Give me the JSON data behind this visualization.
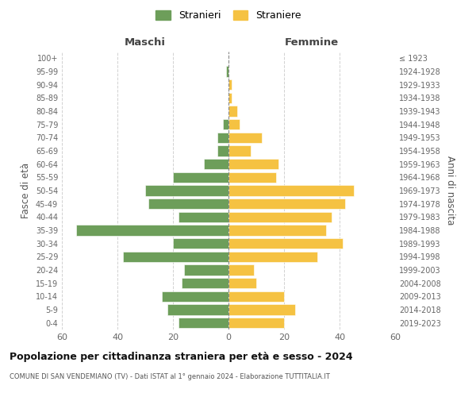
{
  "age_groups": [
    "0-4",
    "5-9",
    "10-14",
    "15-19",
    "20-24",
    "25-29",
    "30-34",
    "35-39",
    "40-44",
    "45-49",
    "50-54",
    "55-59",
    "60-64",
    "65-69",
    "70-74",
    "75-79",
    "80-84",
    "85-89",
    "90-94",
    "95-99",
    "100+"
  ],
  "birth_years": [
    "2019-2023",
    "2014-2018",
    "2009-2013",
    "2004-2008",
    "1999-2003",
    "1994-1998",
    "1989-1993",
    "1984-1988",
    "1979-1983",
    "1974-1978",
    "1969-1973",
    "1964-1968",
    "1959-1963",
    "1954-1958",
    "1949-1953",
    "1944-1948",
    "1939-1943",
    "1934-1938",
    "1929-1933",
    "1924-1928",
    "≤ 1923"
  ],
  "maschi": [
    18,
    22,
    24,
    17,
    16,
    38,
    20,
    55,
    18,
    29,
    30,
    20,
    9,
    4,
    4,
    2,
    0,
    0,
    0,
    1,
    0
  ],
  "femmine": [
    20,
    24,
    20,
    10,
    9,
    32,
    41,
    35,
    37,
    42,
    45,
    17,
    18,
    8,
    12,
    4,
    3,
    1,
    1,
    0,
    0
  ],
  "color_maschi": "#6d9e5a",
  "color_femmine": "#f5c242",
  "title": "Popolazione per cittadinanza straniera per età e sesso - 2024",
  "subtitle": "COMUNE DI SAN VENDEMIANO (TV) - Dati ISTAT al 1° gennaio 2024 - Elaborazione TUTTITALIA.IT",
  "xlabel_left": "Maschi",
  "xlabel_right": "Femmine",
  "ylabel_left": "Fasce di età",
  "ylabel_right": "Anni di nascita",
  "xlim": 60,
  "legend_maschi": "Stranieri",
  "legend_femmine": "Straniere",
  "background_color": "#ffffff",
  "grid_color": "#cccccc"
}
